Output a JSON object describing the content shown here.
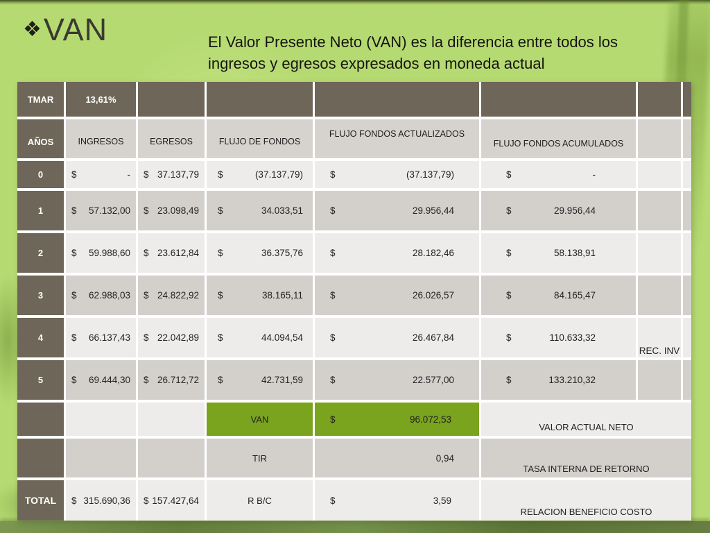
{
  "colors": {
    "slide_background": "#b6da72",
    "table_dark_cell": "#6e6759",
    "table_light_row": "#edecea",
    "table_gray_row": "#d3d0cc",
    "table_header_cell": "#d6d3cf",
    "highlight_green": "#7aa31e",
    "bottom_band": "#6b8342"
  },
  "slide": {
    "title": "VAN",
    "title_icon_glyph": "❖",
    "subtitle_line1": "El Valor Presente Neto (VAN) es la diferencia entre todos los",
    "subtitle_line2": "ingresos y egresos expresados en moneda actual"
  },
  "table": {
    "currency": "$",
    "tmar": {
      "label": "TMAR",
      "value": "13,61%"
    },
    "headers": {
      "years": "AÑOS",
      "ingresos": "INGRESOS",
      "egresos": "EGRESOS",
      "flujo": "FLUJO DE FONDOS",
      "actualizados": "FLUJO FONDOS ACTUALIZADOS",
      "acumulados": "FLUJO FONDOS ACUMULADOS"
    },
    "rows": [
      {
        "year": "0",
        "ingresos": "-",
        "egresos": "37.137,79",
        "flujo": "(37.137,79)",
        "actualizados": "(37.137,79)",
        "acumulados": "-"
      },
      {
        "year": "1",
        "ingresos": "57.132,00",
        "egresos": "23.098,49",
        "flujo": "34.033,51",
        "actualizados": "29.956,44",
        "acumulados": "29.956,44"
      },
      {
        "year": "2",
        "ingresos": "59.988,60",
        "egresos": "23.612,84",
        "flujo": "36.375,76",
        "actualizados": "28.182,46",
        "acumulados": "58.138,91"
      },
      {
        "year": "3",
        "ingresos": "62.988,03",
        "egresos": "24.822,92",
        "flujo": "38.165,11",
        "actualizados": "26.026,57",
        "acumulados": "84.165,47"
      },
      {
        "year": "4",
        "ingresos": "66.137,43",
        "egresos": "22.042,89",
        "flujo": "44.094,54",
        "actualizados": "26.467,84",
        "acumulados": "110.633,32"
      },
      {
        "year": "5",
        "ingresos": "69.444,30",
        "egresos": "26.712,72",
        "flujo": "42.731,59",
        "actualizados": "22.577,00",
        "acumulados": "133.210,32"
      }
    ],
    "rec_inv_label": "REC. INV",
    "van": {
      "label": "VAN",
      "value": "96.072,53",
      "note": "VALOR ACTUAL NETO"
    },
    "tir": {
      "label": "TIR",
      "value": "0,94",
      "note": "TASA INTERNA DE RETORNO"
    },
    "total": {
      "label": "TOTAL",
      "ingresos": "315.690,36",
      "egresos": "157.427,64",
      "rbc_label": "R B/C",
      "rbc_value": "3,59",
      "rbc_note": "RELACION BENEFICIO COSTO"
    }
  }
}
